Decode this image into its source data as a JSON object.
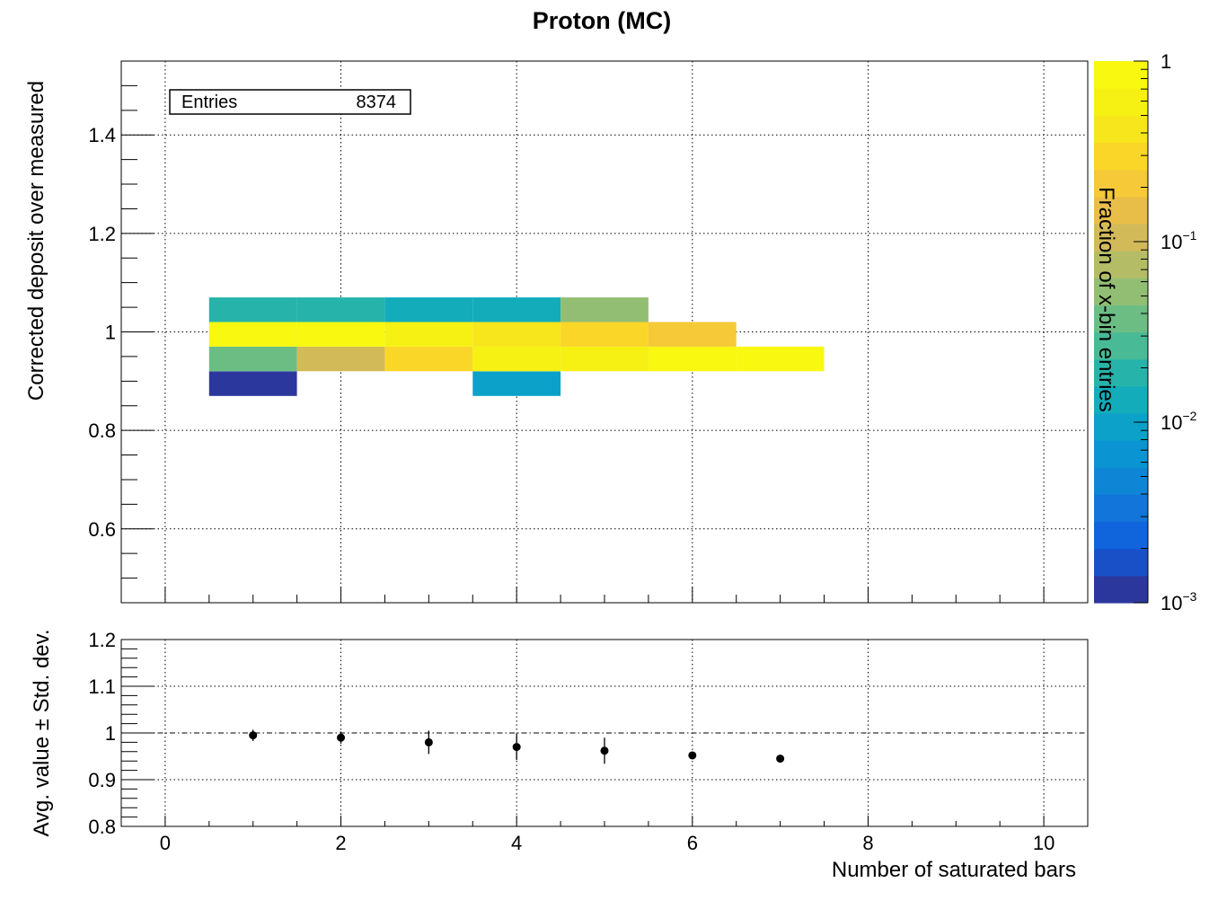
{
  "chart_data": [
    {
      "type": "heatmap",
      "title": "Proton (MC)",
      "xlabel": "Number of saturated bars",
      "ylabel": "Corrected deposit over measured",
      "zlabel": "Fraction of x-bin entries",
      "z_scale": "log",
      "zlim": [
        0.001,
        1
      ],
      "xlim": [
        -0.5,
        10.5
      ],
      "ylim": [
        0.45,
        1.55
      ],
      "x_ticks": [
        0,
        2,
        4,
        6,
        8,
        10
      ],
      "y_ticks": [
        0.6,
        0.8,
        1.0,
        1.2,
        1.4
      ],
      "y_tick_labels": [
        "0.6",
        "0.8",
        "1",
        "1.2",
        "1.4"
      ],
      "z_tick_labels": [
        {
          "base": "1",
          "exp": "",
          "value": 1
        },
        {
          "base": "10",
          "exp": "−1",
          "value": 0.1
        },
        {
          "base": "10",
          "exp": "−2",
          "value": 0.01
        },
        {
          "base": "10",
          "exp": "−3",
          "value": 0.001
        }
      ],
      "grid": true,
      "stats": {
        "label": "Entries",
        "value": "8374"
      },
      "cells": [
        {
          "x": [
            0.5,
            1.5
          ],
          "y": [
            0.87,
            0.92
          ],
          "z": 0.0012
        },
        {
          "x": [
            0.5,
            1.5
          ],
          "y": [
            0.92,
            0.97
          ],
          "z": 0.035
        },
        {
          "x": [
            0.5,
            1.5
          ],
          "y": [
            0.97,
            1.02
          ],
          "z": 0.9
        },
        {
          "x": [
            0.5,
            1.5
          ],
          "y": [
            1.02,
            1.07
          ],
          "z": 0.02
        },
        {
          "x": [
            1.5,
            2.5
          ],
          "y": [
            0.92,
            0.97
          ],
          "z": 0.09
        },
        {
          "x": [
            1.5,
            2.5
          ],
          "y": [
            0.97,
            1.02
          ],
          "z": 0.9
        },
        {
          "x": [
            1.5,
            2.5
          ],
          "y": [
            1.02,
            1.07
          ],
          "z": 0.02
        },
        {
          "x": [
            2.5,
            3.5
          ],
          "y": [
            0.92,
            0.97
          ],
          "z": 0.35
        },
        {
          "x": [
            2.5,
            3.5
          ],
          "y": [
            0.97,
            1.02
          ],
          "z": 0.6
        },
        {
          "x": [
            2.5,
            3.5
          ],
          "y": [
            1.02,
            1.07
          ],
          "z": 0.015
        },
        {
          "x": [
            3.5,
            4.5
          ],
          "y": [
            0.87,
            0.92
          ],
          "z": 0.008
        },
        {
          "x": [
            3.5,
            4.5
          ],
          "y": [
            0.92,
            0.97
          ],
          "z": 0.6
        },
        {
          "x": [
            3.5,
            4.5
          ],
          "y": [
            0.97,
            1.02
          ],
          "z": 0.5
        },
        {
          "x": [
            3.5,
            4.5
          ],
          "y": [
            1.02,
            1.07
          ],
          "z": 0.015
        },
        {
          "x": [
            4.5,
            5.5
          ],
          "y": [
            0.92,
            0.97
          ],
          "z": 0.6
        },
        {
          "x": [
            4.5,
            5.5
          ],
          "y": [
            0.97,
            1.02
          ],
          "z": 0.35
        },
        {
          "x": [
            4.5,
            5.5
          ],
          "y": [
            1.02,
            1.07
          ],
          "z": 0.045
        },
        {
          "x": [
            5.5,
            6.5
          ],
          "y": [
            0.92,
            0.97
          ],
          "z": 0.95
        },
        {
          "x": [
            5.5,
            6.5
          ],
          "y": [
            0.97,
            1.02
          ],
          "z": 0.18
        },
        {
          "x": [
            6.5,
            7.5
          ],
          "y": [
            0.92,
            0.97
          ],
          "z": 0.95
        }
      ]
    },
    {
      "type": "scatter",
      "ylabel": "Avg. value ± Std. dev.",
      "xlabel": "Number of saturated bars",
      "xlim": [
        -0.5,
        10.5
      ],
      "ylim": [
        0.8,
        1.2
      ],
      "x_ticks": [
        0,
        2,
        4,
        6,
        8,
        10
      ],
      "y_ticks": [
        0.8,
        0.9,
        1.0,
        1.1,
        1.2
      ],
      "y_tick_labels": [
        "0.8",
        "0.9",
        "1",
        "1.1",
        "1.2"
      ],
      "reference_line": 1.0,
      "points": [
        {
          "x": 1,
          "y": 0.995,
          "err": 0.012
        },
        {
          "x": 2,
          "y": 0.99,
          "err": 0.013
        },
        {
          "x": 3,
          "y": 0.98,
          "err": 0.025
        },
        {
          "x": 4,
          "y": 0.97,
          "err": 0.028
        },
        {
          "x": 5,
          "y": 0.962,
          "err": 0.028
        },
        {
          "x": 6,
          "y": 0.952,
          "err": 0.008
        },
        {
          "x": 7,
          "y": 0.945,
          "err": 0.005
        }
      ]
    }
  ]
}
